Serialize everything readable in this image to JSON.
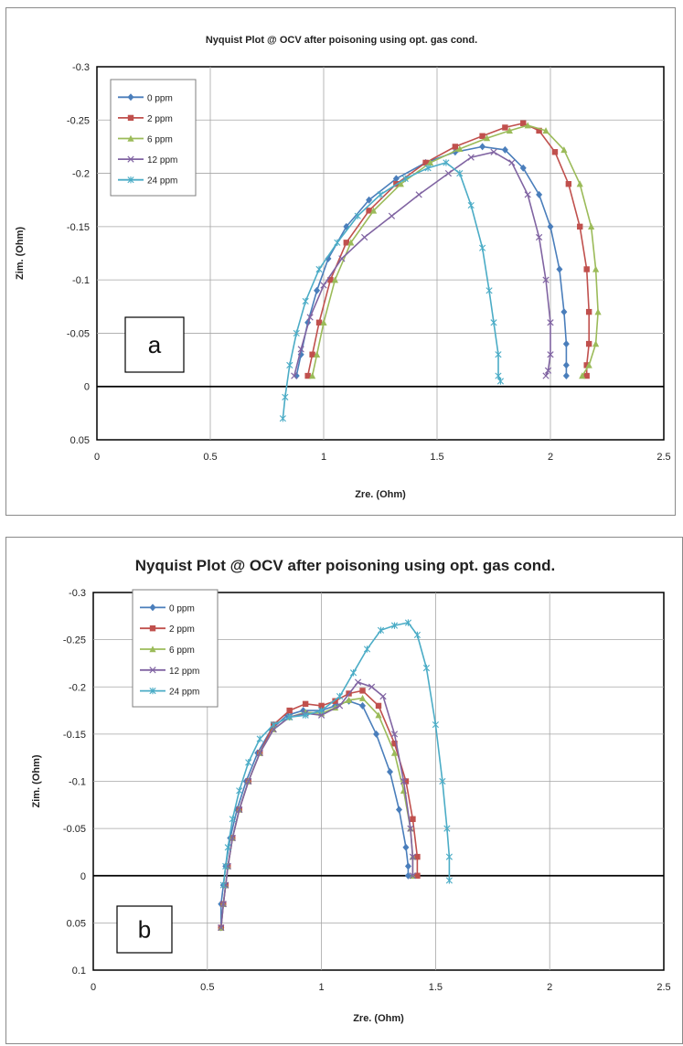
{
  "chart_data": [
    {
      "id": "a",
      "type": "scatter",
      "title": "Nyquist Plot @ OCV after poisoning using opt. gas cond.",
      "xlabel": "Zre. (Ohm)",
      "ylabel": "Zim. (Ohm)",
      "xlim": [
        0,
        2.5
      ],
      "ylim": [
        -0.3,
        0.05
      ],
      "y_inverted": true,
      "x_ticks": [
        "0",
        "0.5",
        "1",
        "1.5",
        "2",
        "2.5"
      ],
      "y_ticks": [
        "-0.3",
        "-0.25",
        "-0.2",
        "-0.15",
        "-0.1",
        "-0.05",
        "0",
        "0.05"
      ],
      "grid": true,
      "legend_position": "top-left",
      "panel_tag": "a",
      "series": [
        {
          "name": "0 ppm",
          "color": "#4a7ebb",
          "marker": "diamond",
          "x": [
            0.88,
            0.9,
            0.93,
            0.97,
            1.02,
            1.1,
            1.2,
            1.32,
            1.45,
            1.58,
            1.7,
            1.8,
            1.88,
            1.95,
            2.0,
            2.04,
            2.06,
            2.07,
            2.07,
            2.07
          ],
          "y": [
            -0.01,
            -0.03,
            -0.06,
            -0.09,
            -0.12,
            -0.15,
            -0.175,
            -0.195,
            -0.21,
            -0.22,
            -0.225,
            -0.222,
            -0.205,
            -0.18,
            -0.15,
            -0.11,
            -0.07,
            -0.04,
            -0.02,
            -0.01
          ]
        },
        {
          "name": "2 ppm",
          "color": "#c0504d",
          "marker": "square",
          "x": [
            0.93,
            0.95,
            0.98,
            1.03,
            1.1,
            1.2,
            1.32,
            1.45,
            1.58,
            1.7,
            1.8,
            1.88,
            1.95,
            2.02,
            2.08,
            2.13,
            2.16,
            2.17,
            2.17,
            2.16,
            2.16
          ],
          "y": [
            -0.01,
            -0.03,
            -0.06,
            -0.1,
            -0.135,
            -0.165,
            -0.19,
            -0.21,
            -0.225,
            -0.235,
            -0.243,
            -0.247,
            -0.24,
            -0.22,
            -0.19,
            -0.15,
            -0.11,
            -0.07,
            -0.04,
            -0.02,
            -0.01
          ]
        },
        {
          "name": "6 ppm",
          "color": "#9bbb59",
          "marker": "triangle",
          "x": [
            0.95,
            0.97,
            1.0,
            1.05,
            1.12,
            1.22,
            1.34,
            1.47,
            1.6,
            1.72,
            1.82,
            1.9,
            1.98,
            2.06,
            2.13,
            2.18,
            2.2,
            2.21,
            2.2,
            2.17,
            2.14
          ],
          "y": [
            -0.01,
            -0.03,
            -0.06,
            -0.1,
            -0.135,
            -0.165,
            -0.19,
            -0.21,
            -0.223,
            -0.233,
            -0.24,
            -0.245,
            -0.24,
            -0.222,
            -0.19,
            -0.15,
            -0.11,
            -0.07,
            -0.04,
            -0.02,
            -0.01
          ]
        },
        {
          "name": "12 ppm",
          "color": "#8064a2",
          "marker": "cross",
          "x": [
            0.87,
            0.9,
            0.94,
            1.0,
            1.08,
            1.18,
            1.3,
            1.42,
            1.55,
            1.65,
            1.75,
            1.83,
            1.9,
            1.95,
            1.98,
            2.0,
            2.0,
            1.99,
            1.98
          ],
          "y": [
            -0.01,
            -0.035,
            -0.065,
            -0.095,
            -0.12,
            -0.14,
            -0.16,
            -0.18,
            -0.2,
            -0.215,
            -0.22,
            -0.21,
            -0.18,
            -0.14,
            -0.1,
            -0.06,
            -0.03,
            -0.015,
            -0.01
          ]
        },
        {
          "name": "24 ppm",
          "color": "#4bacc6",
          "marker": "star",
          "x": [
            0.82,
            0.83,
            0.85,
            0.88,
            0.92,
            0.98,
            1.06,
            1.15,
            1.25,
            1.36,
            1.46,
            1.54,
            1.6,
            1.65,
            1.7,
            1.73,
            1.75,
            1.77,
            1.77,
            1.78
          ],
          "y": [
            0.03,
            0.01,
            -0.02,
            -0.05,
            -0.08,
            -0.11,
            -0.135,
            -0.16,
            -0.18,
            -0.195,
            -0.205,
            -0.21,
            -0.2,
            -0.17,
            -0.13,
            -0.09,
            -0.06,
            -0.03,
            -0.01,
            -0.005
          ]
        }
      ]
    },
    {
      "id": "b",
      "type": "scatter",
      "title": "Nyquist Plot @ OCV after poisoning using opt. gas cond.",
      "xlabel": "Zre. (Ohm)",
      "ylabel": "Zim. (Ohm)",
      "xlim": [
        0,
        2.5
      ],
      "ylim": [
        -0.3,
        0.1
      ],
      "y_inverted": true,
      "x_ticks": [
        "0",
        "0.5",
        "1",
        "1.5",
        "2",
        "2.5"
      ],
      "y_ticks": [
        "-0.3",
        "-0.25",
        "-0.2",
        "-0.15",
        "-0.1",
        "-0.05",
        "0",
        "0.05",
        "0.1"
      ],
      "grid": true,
      "legend_position": "top-left",
      "panel_tag": "b",
      "series": [
        {
          "name": "0 ppm",
          "color": "#4a7ebb",
          "marker": "diamond",
          "x": [
            0.56,
            0.56,
            0.57,
            0.58,
            0.6,
            0.63,
            0.67,
            0.72,
            0.78,
            0.85,
            0.92,
            1.0,
            1.06,
            1.12,
            1.18,
            1.24,
            1.3,
            1.34,
            1.37,
            1.38,
            1.38
          ],
          "y": [
            0.055,
            0.03,
            0.01,
            -0.01,
            -0.04,
            -0.07,
            -0.1,
            -0.13,
            -0.155,
            -0.17,
            -0.175,
            -0.175,
            -0.18,
            -0.185,
            -0.18,
            -0.15,
            -0.11,
            -0.07,
            -0.03,
            -0.01,
            0.0
          ]
        },
        {
          "name": "2 ppm",
          "color": "#c0504d",
          "marker": "square",
          "x": [
            0.56,
            0.57,
            0.58,
            0.59,
            0.61,
            0.64,
            0.68,
            0.73,
            0.79,
            0.86,
            0.93,
            1.0,
            1.06,
            1.12,
            1.18,
            1.25,
            1.32,
            1.37,
            1.4,
            1.42,
            1.42
          ],
          "y": [
            0.055,
            0.03,
            0.01,
            -0.01,
            -0.04,
            -0.07,
            -0.1,
            -0.13,
            -0.16,
            -0.175,
            -0.182,
            -0.18,
            -0.185,
            -0.193,
            -0.196,
            -0.18,
            -0.14,
            -0.1,
            -0.06,
            -0.02,
            0.0
          ]
        },
        {
          "name": "6 ppm",
          "color": "#9bbb59",
          "marker": "triangle",
          "x": [
            0.56,
            0.57,
            0.58,
            0.59,
            0.61,
            0.64,
            0.68,
            0.73,
            0.79,
            0.86,
            0.93,
            1.0,
            1.06,
            1.12,
            1.18,
            1.25,
            1.32,
            1.36,
            1.39,
            1.4,
            1.4
          ],
          "y": [
            0.055,
            0.03,
            0.01,
            -0.01,
            -0.04,
            -0.07,
            -0.1,
            -0.13,
            -0.155,
            -0.168,
            -0.173,
            -0.172,
            -0.178,
            -0.186,
            -0.188,
            -0.17,
            -0.13,
            -0.09,
            -0.05,
            -0.02,
            0.0
          ]
        },
        {
          "name": "12 ppm",
          "color": "#8064a2",
          "marker": "cross",
          "x": [
            0.56,
            0.57,
            0.58,
            0.59,
            0.61,
            0.64,
            0.68,
            0.73,
            0.79,
            0.86,
            0.93,
            1.0,
            1.08,
            1.16,
            1.22,
            1.27,
            1.32,
            1.36,
            1.39,
            1.4,
            1.4
          ],
          "y": [
            0.055,
            0.03,
            0.01,
            -0.01,
            -0.04,
            -0.07,
            -0.1,
            -0.13,
            -0.155,
            -0.168,
            -0.172,
            -0.17,
            -0.18,
            -0.205,
            -0.2,
            -0.19,
            -0.15,
            -0.1,
            -0.05,
            -0.02,
            0.0
          ]
        },
        {
          "name": "24 ppm",
          "color": "#4bacc6",
          "marker": "star",
          "x": [
            0.57,
            0.58,
            0.59,
            0.61,
            0.64,
            0.68,
            0.73,
            0.79,
            0.86,
            0.93,
            1.0,
            1.08,
            1.14,
            1.2,
            1.26,
            1.32,
            1.38,
            1.42,
            1.46,
            1.5,
            1.53,
            1.55,
            1.56,
            1.56
          ],
          "y": [
            0.01,
            -0.01,
            -0.03,
            -0.06,
            -0.09,
            -0.12,
            -0.145,
            -0.16,
            -0.168,
            -0.17,
            -0.175,
            -0.19,
            -0.215,
            -0.24,
            -0.26,
            -0.265,
            -0.268,
            -0.255,
            -0.22,
            -0.16,
            -0.1,
            -0.05,
            -0.02,
            0.005
          ]
        }
      ]
    }
  ]
}
